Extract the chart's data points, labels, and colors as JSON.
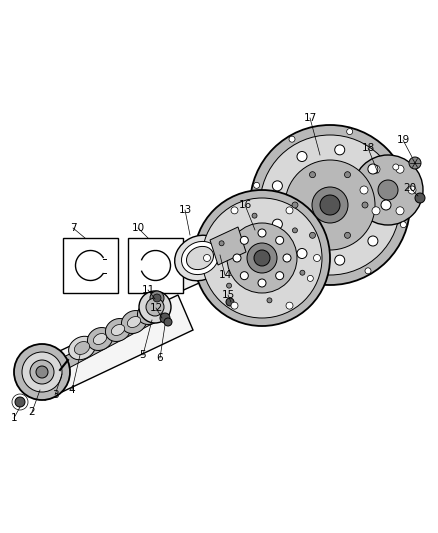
{
  "bg_color": "#ffffff",
  "line_color": "#000000",
  "fig_width": 4.38,
  "fig_height": 5.33,
  "dpi": 100,
  "gray_light": "#d8d8d8",
  "gray_mid": "#b8b8b8",
  "gray_dark": "#888888",
  "gray_darker": "#555555"
}
